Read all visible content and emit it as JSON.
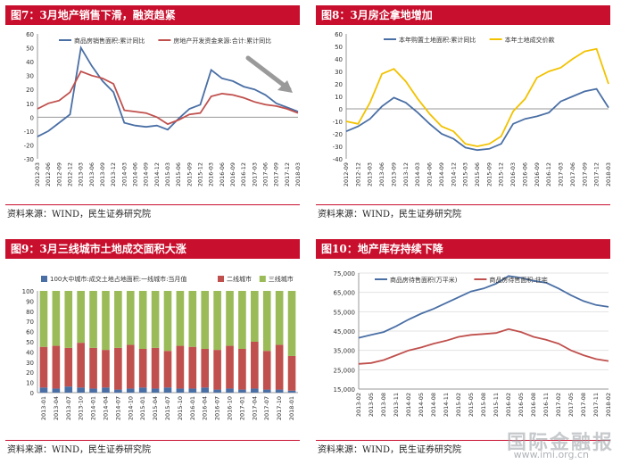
{
  "source_label": "资料来源：WIND，民生证券研究院",
  "watermark": {
    "logo": "国际金融报",
    "url": "www.imi.org.cn"
  },
  "chart_data": [
    {
      "type": "line",
      "title": "图7：3月地产销售下滑，融资趋紧",
      "categories": [
        "2012-03",
        "2012-06",
        "2012-09",
        "2012-12",
        "2013-03",
        "2013-06",
        "2013-09",
        "2013-12",
        "2014-03",
        "2014-06",
        "2014-09",
        "2014-12",
        "2015-03",
        "2015-06",
        "2015-09",
        "2015-12",
        "2016-03",
        "2016-06",
        "2016-09",
        "2016-12",
        "2017-03",
        "2017-06",
        "2017-09",
        "2017-12",
        "2018-03"
      ],
      "ylim": [
        -30,
        60
      ],
      "yticks": [
        -30,
        -20,
        -10,
        0,
        10,
        20,
        30,
        40,
        50,
        60
      ],
      "legend_position": "top",
      "series": [
        {
          "name": "商品房销售面积:累计同比",
          "color": "#4a6fa5",
          "values": [
            -14,
            -10,
            -4,
            2,
            50,
            37,
            26,
            18,
            -4,
            -6,
            -7,
            -6,
            -9,
            -1,
            6,
            9,
            34,
            28,
            26,
            22,
            20,
            16,
            10,
            7,
            4
          ]
        },
        {
          "name": "房地产开发资金来源:合计:累计同比",
          "color": "#c0504d",
          "values": [
            6,
            10,
            12,
            18,
            33,
            30,
            28,
            24,
            5,
            4,
            3,
            0,
            -5,
            -2,
            2,
            3,
            15,
            17,
            16,
            14,
            11,
            9,
            8,
            6,
            3
          ]
        }
      ]
    },
    {
      "type": "line",
      "title": "图8：3月房企拿地增加",
      "categories": [
        "2012-09",
        "2012-12",
        "2013-03",
        "2013-06",
        "2013-09",
        "2013-12",
        "2014-03",
        "2014-06",
        "2014-09",
        "2014-12",
        "2015-03",
        "2015-06",
        "2015-09",
        "2015-12",
        "2016-03",
        "2016-06",
        "2016-09",
        "2016-12",
        "2017-03",
        "2017-06",
        "2017-09",
        "2017-12",
        "2018-03"
      ],
      "ylim": [
        -40,
        60
      ],
      "yticks": [
        -40,
        -30,
        -20,
        -10,
        0,
        10,
        20,
        30,
        40,
        50,
        60
      ],
      "legend_position": "top",
      "series": [
        {
          "name": "本年购置土地面积:累计同比",
          "color": "#4a6fa5",
          "values": [
            -18,
            -14,
            -8,
            2,
            9,
            5,
            -3,
            -12,
            -20,
            -24,
            -31,
            -33,
            -32,
            -28,
            -12,
            -8,
            -6,
            -3,
            6,
            10,
            14,
            16,
            1
          ]
        },
        {
          "name": "本年土地成交价款",
          "color": "#f2c200",
          "values": [
            -10,
            -12,
            5,
            28,
            32,
            22,
            8,
            -4,
            -14,
            -18,
            -28,
            -30,
            -28,
            -22,
            -2,
            8,
            25,
            30,
            33,
            40,
            46,
            48,
            20
          ]
        }
      ]
    },
    {
      "type": "bar",
      "stacked": true,
      "title": "图9：3月三线城市土地成交面积大涨",
      "categories": [
        "2013-01",
        "2013-04",
        "2013-07",
        "2013-10",
        "2014-01",
        "2014-04",
        "2014-07",
        "2014-10",
        "2015-01",
        "2015-04",
        "2015-07",
        "2015-10",
        "2016-01",
        "2016-04",
        "2016-07",
        "2016-10",
        "2017-01",
        "2017-04",
        "2017-07",
        "2017-10",
        "2018-01"
      ],
      "ylim": [
        0,
        100
      ],
      "yticks": [
        0,
        10,
        20,
        30,
        40,
        50,
        60,
        70,
        80,
        90,
        100
      ],
      "legend_position": "top",
      "series": [
        {
          "name": "100大中城市:成交土地占地面积:一线城市:当月值",
          "color": "#4a6fa5",
          "values": [
            5,
            4,
            6,
            5,
            4,
            5,
            3,
            4,
            5,
            4,
            5,
            4,
            4,
            5,
            3,
            4,
            3,
            4,
            3,
            3,
            2
          ]
        },
        {
          "name": "二线城市",
          "color": "#c0504d",
          "values": [
            40,
            42,
            38,
            44,
            40,
            37,
            41,
            43,
            38,
            40,
            36,
            42,
            41,
            38,
            39,
            42,
            40,
            46,
            38,
            44,
            34
          ]
        },
        {
          "name": "三线城市",
          "color": "#9bbb59",
          "values": [
            55,
            54,
            56,
            51,
            56,
            58,
            56,
            53,
            57,
            56,
            59,
            54,
            55,
            57,
            58,
            54,
            57,
            50,
            59,
            53,
            64
          ]
        }
      ]
    },
    {
      "type": "line",
      "title": "图10：地产库存持续下降",
      "categories": [
        "2013-02",
        "2013-05",
        "2013-08",
        "2013-11",
        "2014-02",
        "2014-05",
        "2014-08",
        "2014-11",
        "2015-02",
        "2015-05",
        "2015-08",
        "2015-11",
        "2016-02",
        "2016-05",
        "2016-08",
        "2016-11",
        "2017-02",
        "2017-05",
        "2017-08",
        "2017-11",
        "2018-02"
      ],
      "ylim": [
        15000,
        75000
      ],
      "yticks": [
        "15,000",
        "25,000",
        "35,000",
        "45,000",
        "55,000",
        "65,000",
        "75,000"
      ],
      "ytick_values": [
        15000,
        25000,
        35000,
        45000,
        55000,
        65000,
        75000
      ],
      "legend_position": "top",
      "series": [
        {
          "name": "商品房待售面积(万平米)",
          "color": "#4a6fa5",
          "values": [
            41500,
            43000,
            44500,
            47500,
            51000,
            54000,
            56500,
            59500,
            62500,
            65500,
            67000,
            69500,
            73500,
            72500,
            71000,
            70000,
            67000,
            63500,
            60500,
            58500,
            57500
          ]
        },
        {
          "name": "商品房待售面积:住宅",
          "color": "#c0504d",
          "values": [
            28000,
            28500,
            30000,
            32500,
            35000,
            36500,
            38500,
            40000,
            42000,
            43000,
            43500,
            44000,
            46000,
            44500,
            42000,
            40500,
            38500,
            35000,
            32500,
            30500,
            29500
          ]
        }
      ]
    }
  ]
}
